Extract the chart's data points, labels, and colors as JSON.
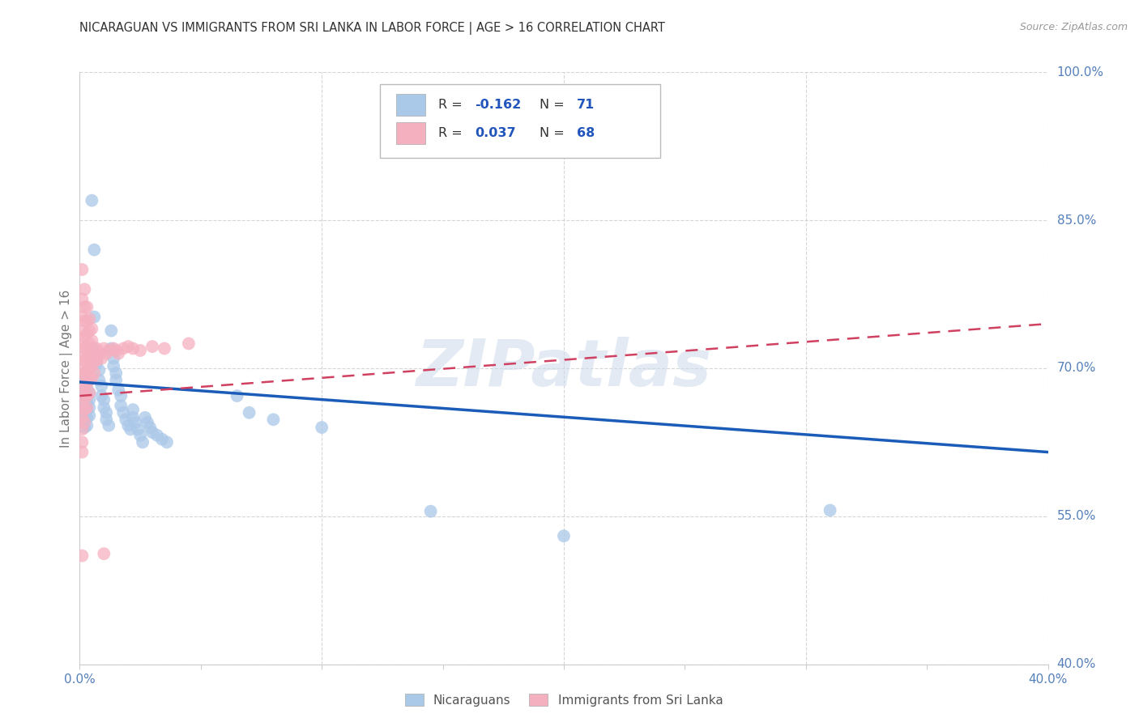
{
  "title": "NICARAGUAN VS IMMIGRANTS FROM SRI LANKA IN LABOR FORCE | AGE > 16 CORRELATION CHART",
  "source": "Source: ZipAtlas.com",
  "ylabel": "In Labor Force | Age > 16",
  "xlim": [
    0.0,
    0.4
  ],
  "ylim": [
    0.4,
    1.0
  ],
  "yticks_right": [
    0.4,
    0.55,
    0.7,
    0.85,
    1.0
  ],
  "yticklabels_right": [
    "40.0%",
    "55.0%",
    "70.0%",
    "85.0%",
    "100.0%"
  ],
  "blue_color": "#aac8e8",
  "pink_color": "#f5b0c0",
  "blue_line_color": "#1a5cb8",
  "pink_line_color": "#d04060",
  "legend_R_blue": "-0.162",
  "legend_N_blue": "71",
  "legend_R_pink": "0.037",
  "legend_N_pink": "68",
  "legend_label_blue": "Nicaraguans",
  "legend_label_pink": "Immigrants from Sri Lanka",
  "watermark": "ZIPatlas",
  "background_color": "#ffffff",
  "grid_color": "#cccccc",
  "blue_trend": [
    0.0,
    0.686,
    0.4,
    0.615
  ],
  "pink_trend": [
    0.0,
    0.672,
    0.4,
    0.745
  ],
  "blue_scatter": [
    [
      0.001,
      0.685
    ],
    [
      0.001,
      0.672
    ],
    [
      0.001,
      0.668
    ],
    [
      0.001,
      0.66
    ],
    [
      0.001,
      0.655
    ],
    [
      0.001,
      0.648
    ],
    [
      0.002,
      0.69
    ],
    [
      0.002,
      0.678
    ],
    [
      0.002,
      0.67
    ],
    [
      0.002,
      0.662
    ],
    [
      0.002,
      0.655
    ],
    [
      0.002,
      0.648
    ],
    [
      0.002,
      0.64
    ],
    [
      0.003,
      0.68
    ],
    [
      0.003,
      0.672
    ],
    [
      0.003,
      0.665
    ],
    [
      0.003,
      0.658
    ],
    [
      0.003,
      0.65
    ],
    [
      0.003,
      0.642
    ],
    [
      0.004,
      0.675
    ],
    [
      0.004,
      0.668
    ],
    [
      0.004,
      0.66
    ],
    [
      0.004,
      0.652
    ],
    [
      0.005,
      0.87
    ],
    [
      0.006,
      0.82
    ],
    [
      0.006,
      0.752
    ],
    [
      0.006,
      0.718
    ],
    [
      0.007,
      0.712
    ],
    [
      0.007,
      0.705
    ],
    [
      0.008,
      0.698
    ],
    [
      0.008,
      0.688
    ],
    [
      0.009,
      0.682
    ],
    [
      0.009,
      0.672
    ],
    [
      0.01,
      0.668
    ],
    [
      0.01,
      0.66
    ],
    [
      0.011,
      0.655
    ],
    [
      0.011,
      0.648
    ],
    [
      0.012,
      0.642
    ],
    [
      0.013,
      0.738
    ],
    [
      0.013,
      0.72
    ],
    [
      0.014,
      0.71
    ],
    [
      0.014,
      0.702
    ],
    [
      0.015,
      0.695
    ],
    [
      0.015,
      0.688
    ],
    [
      0.016,
      0.678
    ],
    [
      0.017,
      0.672
    ],
    [
      0.017,
      0.662
    ],
    [
      0.018,
      0.655
    ],
    [
      0.019,
      0.648
    ],
    [
      0.02,
      0.642
    ],
    [
      0.021,
      0.638
    ],
    [
      0.022,
      0.658
    ],
    [
      0.022,
      0.65
    ],
    [
      0.023,
      0.645
    ],
    [
      0.024,
      0.638
    ],
    [
      0.025,
      0.632
    ],
    [
      0.026,
      0.625
    ],
    [
      0.027,
      0.65
    ],
    [
      0.028,
      0.645
    ],
    [
      0.029,
      0.64
    ],
    [
      0.03,
      0.635
    ],
    [
      0.032,
      0.632
    ],
    [
      0.034,
      0.628
    ],
    [
      0.036,
      0.625
    ],
    [
      0.065,
      0.672
    ],
    [
      0.07,
      0.655
    ],
    [
      0.08,
      0.648
    ],
    [
      0.1,
      0.64
    ],
    [
      0.145,
      0.555
    ],
    [
      0.2,
      0.53
    ],
    [
      0.31,
      0.556
    ]
  ],
  "pink_scatter": [
    [
      0.001,
      0.51
    ],
    [
      0.001,
      0.8
    ],
    [
      0.001,
      0.77
    ],
    [
      0.001,
      0.752
    ],
    [
      0.001,
      0.738
    ],
    [
      0.001,
      0.725
    ],
    [
      0.001,
      0.712
    ],
    [
      0.001,
      0.7
    ],
    [
      0.001,
      0.688
    ],
    [
      0.001,
      0.675
    ],
    [
      0.001,
      0.662
    ],
    [
      0.001,
      0.65
    ],
    [
      0.001,
      0.638
    ],
    [
      0.001,
      0.625
    ],
    [
      0.001,
      0.615
    ],
    [
      0.002,
      0.78
    ],
    [
      0.002,
      0.762
    ],
    [
      0.002,
      0.748
    ],
    [
      0.002,
      0.732
    ],
    [
      0.002,
      0.72
    ],
    [
      0.002,
      0.708
    ],
    [
      0.002,
      0.695
    ],
    [
      0.002,
      0.682
    ],
    [
      0.002,
      0.67
    ],
    [
      0.002,
      0.658
    ],
    [
      0.002,
      0.645
    ],
    [
      0.003,
      0.762
    ],
    [
      0.003,
      0.748
    ],
    [
      0.003,
      0.735
    ],
    [
      0.003,
      0.722
    ],
    [
      0.003,
      0.71
    ],
    [
      0.003,
      0.698
    ],
    [
      0.003,
      0.685
    ],
    [
      0.003,
      0.672
    ],
    [
      0.003,
      0.66
    ],
    [
      0.004,
      0.75
    ],
    [
      0.004,
      0.738
    ],
    [
      0.004,
      0.725
    ],
    [
      0.004,
      0.712
    ],
    [
      0.004,
      0.7
    ],
    [
      0.004,
      0.688
    ],
    [
      0.004,
      0.675
    ],
    [
      0.005,
      0.74
    ],
    [
      0.005,
      0.728
    ],
    [
      0.005,
      0.715
    ],
    [
      0.005,
      0.702
    ],
    [
      0.005,
      0.69
    ],
    [
      0.006,
      0.72
    ],
    [
      0.006,
      0.708
    ],
    [
      0.006,
      0.695
    ],
    [
      0.007,
      0.72
    ],
    [
      0.007,
      0.708
    ],
    [
      0.008,
      0.715
    ],
    [
      0.009,
      0.71
    ],
    [
      0.01,
      0.72
    ],
    [
      0.011,
      0.715
    ],
    [
      0.012,
      0.718
    ],
    [
      0.014,
      0.72
    ],
    [
      0.015,
      0.718
    ],
    [
      0.016,
      0.715
    ],
    [
      0.018,
      0.72
    ],
    [
      0.02,
      0.722
    ],
    [
      0.022,
      0.72
    ],
    [
      0.025,
      0.718
    ],
    [
      0.03,
      0.722
    ],
    [
      0.035,
      0.72
    ],
    [
      0.045,
      0.725
    ],
    [
      0.01,
      0.512
    ]
  ]
}
